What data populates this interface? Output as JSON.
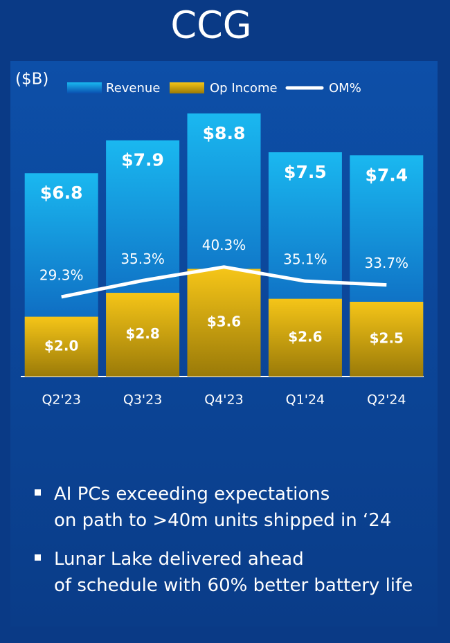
{
  "chart_data": {
    "type": "bar",
    "title": "CCG",
    "unit_label": "($B)",
    "categories": [
      "Q2'23",
      "Q3'23",
      "Q4'23",
      "Q1'24",
      "Q2'24"
    ],
    "series": [
      {
        "name": "Revenue",
        "color": "#1ab8f0",
        "values": [
          6.8,
          7.9,
          8.8,
          7.5,
          7.4
        ],
        "value_labels": [
          "$6.8",
          "$7.9",
          "$8.8",
          "$7.5",
          "$7.4"
        ]
      },
      {
        "name": "Op Income",
        "color": "#f5c518",
        "values": [
          2.0,
          2.8,
          3.6,
          2.6,
          2.5
        ],
        "value_labels": [
          "$2.0",
          "$2.8",
          "$3.6",
          "$2.6",
          "$2.5"
        ]
      },
      {
        "name": "OM%",
        "color": "#ffffff",
        "axis": "y2",
        "type": "line",
        "values": [
          29.3,
          35.3,
          40.3,
          35.1,
          33.7
        ],
        "value_labels": [
          "29.3%",
          "35.3%",
          "40.3%",
          "35.1%",
          "33.7%"
        ]
      }
    ],
    "ylim": [
      0,
      10
    ],
    "y2lim": [
      0,
      110
    ]
  },
  "bullets": [
    "AI PCs exceeding expectations on path to >40m units shipped in ‘24",
    "Lunar Lake delivered ahead of schedule with 60% better battery life"
  ]
}
